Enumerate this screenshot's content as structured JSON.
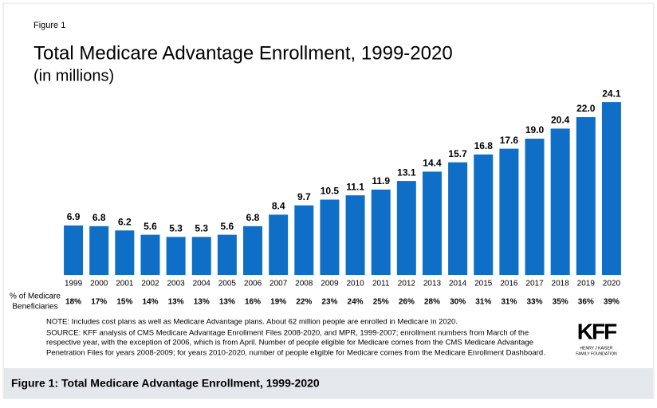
{
  "chart_data": {
    "type": "bar",
    "figure_label": "Figure 1",
    "title": "Total Medicare Advantage Enrollment, 1999-2020",
    "subtitle": "(in millions)",
    "categories": [
      "1999",
      "2000",
      "2001",
      "2002",
      "2003",
      "2004",
      "2005",
      "2006",
      "2007",
      "2008",
      "2009",
      "2010",
      "2011",
      "2012",
      "2013",
      "2014",
      "2015",
      "2016",
      "2017",
      "2018",
      "2019",
      "2020"
    ],
    "values": [
      6.9,
      6.8,
      6.2,
      5.6,
      5.3,
      5.3,
      5.6,
      6.8,
      8.4,
      9.7,
      10.5,
      11.1,
      11.9,
      13.1,
      14.4,
      15.7,
      16.8,
      17.6,
      19.0,
      20.4,
      22.0,
      24.1
    ],
    "value_labels": [
      "6.9",
      "6.8",
      "6.2",
      "5.6",
      "5.3",
      "5.3",
      "5.6",
      "6.8",
      "8.4",
      "9.7",
      "10.5",
      "11.1",
      "11.9",
      "13.1",
      "14.4",
      "15.7",
      "16.8",
      "17.6",
      "19.0",
      "20.4",
      "22.0",
      "24.1"
    ],
    "color": "#0f6fc6",
    "share": {
      "label": [
        "% of Medicare",
        "Beneficiaries"
      ],
      "values": [
        18,
        17,
        15,
        14,
        13,
        13,
        13,
        16,
        19,
        22,
        23,
        24,
        25,
        26,
        28,
        30,
        31,
        31,
        33,
        35,
        36,
        39
      ],
      "value_labels": [
        "18%",
        "17%",
        "15%",
        "14%",
        "13%",
        "13%",
        "13%",
        "16%",
        "19%",
        "22%",
        "23%",
        "24%",
        "25%",
        "26%",
        "28%",
        "30%",
        "31%",
        "31%",
        "33%",
        "35%",
        "36%",
        "39%"
      ]
    },
    "note": "NOTE: Includes cost plans as well as Medicare Advantage plans. About 62 million people are enrolled in Medicare in 2020.",
    "source": [
      "SOURCE: KFF analysis of CMS Medicare Advantage Enrollment Files 2008-2020, and MPR, 1999-2007; enrollment numbers from March of the",
      "respective year, with the exception of 2006, which is from April. Number of people eligible for Medicare comes from the CMS Medicare Advantage",
      "Penetration Files for years 2008-2009; for years 2010-2020, number of people eligible for Medicare comes from the Medicare Enrollment Dashboard."
    ],
    "logo": {
      "name": "KFF",
      "tagline": [
        "HENRY J KAISER",
        "FAMILY FOUNDATION"
      ]
    },
    "caption": "Figure 1: Total Medicare Advantage Enrollment, 1999-2020"
  }
}
